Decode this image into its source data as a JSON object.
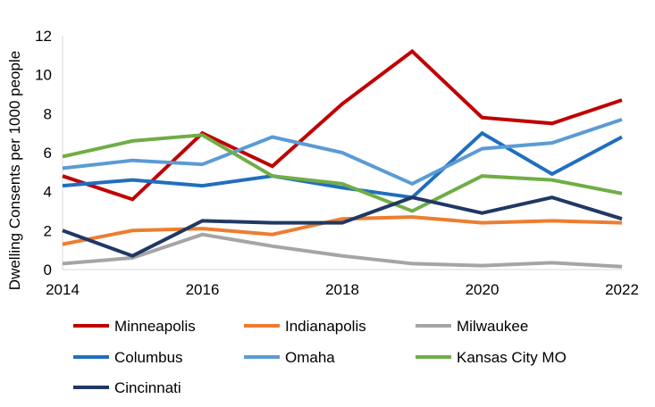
{
  "chart_data": {
    "type": "line",
    "title": "",
    "xlabel": "",
    "ylabel": "Dwelling Consents per 1000 people",
    "x": [
      2014,
      2015,
      2016,
      2017,
      2018,
      2019,
      2020,
      2021,
      2022
    ],
    "x_ticks": [
      "2014",
      "2016",
      "2018",
      "2020",
      "2022"
    ],
    "y_ticks": [
      "0",
      "2",
      "4",
      "6",
      "8",
      "10",
      "12"
    ],
    "xlim": [
      2014,
      2022
    ],
    "ylim": [
      0,
      12
    ],
    "grid": false,
    "legend_position": "bottom",
    "series": [
      {
        "name": "Minneapolis",
        "color": "#C00000",
        "values": [
          4.8,
          3.6,
          7.0,
          5.3,
          8.5,
          11.2,
          7.8,
          7.5,
          8.7
        ]
      },
      {
        "name": "Indianapolis",
        "color": "#ED7D31",
        "values": [
          1.3,
          2.0,
          2.1,
          1.8,
          2.6,
          2.7,
          2.4,
          2.5,
          2.4
        ]
      },
      {
        "name": "Milwaukee",
        "color": "#A5A5A5",
        "values": [
          0.3,
          0.6,
          1.8,
          1.2,
          0.7,
          0.3,
          0.2,
          0.35,
          0.15
        ]
      },
      {
        "name": "Columbus",
        "color": "#1F6FBE",
        "values": [
          4.3,
          4.6,
          4.3,
          4.8,
          4.2,
          3.7,
          7.0,
          4.9,
          6.8
        ]
      },
      {
        "name": "Omaha",
        "color": "#5B9BD5",
        "values": [
          5.2,
          5.6,
          5.4,
          6.8,
          6.0,
          4.4,
          6.2,
          6.5,
          7.7
        ]
      },
      {
        "name": "Kansas City MO",
        "color": "#70AD47",
        "values": [
          5.8,
          6.6,
          6.9,
          4.8,
          4.4,
          3.0,
          4.8,
          4.6,
          3.9
        ]
      },
      {
        "name": "Cincinnati",
        "color": "#203864",
        "values": [
          2.0,
          0.7,
          2.5,
          2.4,
          2.4,
          3.7,
          2.9,
          3.7,
          2.6
        ]
      }
    ]
  }
}
